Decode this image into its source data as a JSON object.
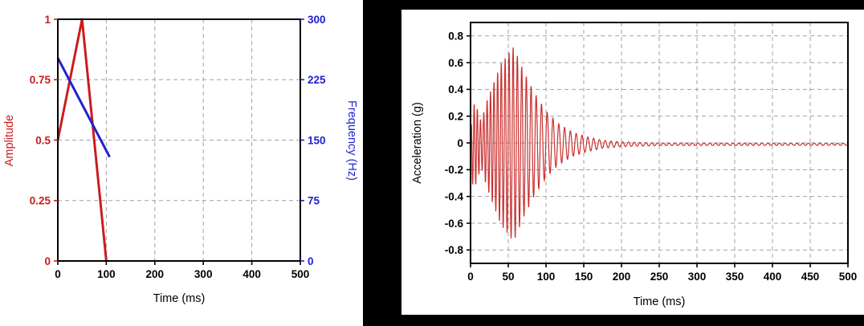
{
  "page": {
    "background": "#000000",
    "panel_background": "#ffffff"
  },
  "chart_data": [
    {
      "id": "amplitude-frequency-chart",
      "type": "line",
      "title": "",
      "xlabel": "Time (ms)",
      "xlim": [
        0,
        500
      ],
      "x_ticks": [
        0,
        100,
        200,
        300,
        400,
        500
      ],
      "x_tick_labels": [
        "0",
        "100",
        "200",
        "300",
        "400",
        "500"
      ],
      "grid": {
        "on": true,
        "style": "dashed",
        "color": "#a0a0a0"
      },
      "axes": {
        "left": {
          "label": "Amplitude",
          "color": "#c81d1d",
          "lim": [
            0,
            1
          ],
          "ticks": [
            0,
            0.25,
            0.5,
            0.75,
            1
          ],
          "tick_labels": [
            "0",
            "0.25",
            "0.5",
            "0.75",
            "1"
          ]
        },
        "right": {
          "label": "Frequency (Hz)",
          "color": "#2121cc",
          "lim": [
            0,
            300
          ],
          "ticks": [
            0,
            75,
            150,
            225,
            300
          ],
          "tick_labels": [
            "0",
            "75",
            "150",
            "225",
            "300"
          ]
        }
      },
      "series": [
        {
          "name": "amplitude-envelope",
          "axis": "left",
          "color": "#c81d1d",
          "x": [
            0,
            50,
            100
          ],
          "y": [
            0.5,
            1,
            0
          ]
        },
        {
          "name": "frequency-sweep",
          "axis": "right",
          "color": "#2121cc",
          "x": [
            0,
            107
          ],
          "y": [
            252,
            129
          ]
        }
      ]
    },
    {
      "id": "acceleration-chart",
      "type": "line",
      "title": "",
      "xlabel": "Time (ms)",
      "ylabel": "Acceleration (g)",
      "xlim": [
        0,
        500
      ],
      "ylim": [
        -0.9,
        0.9
      ],
      "x_ticks": [
        0,
        50,
        100,
        150,
        200,
        250,
        300,
        350,
        400,
        450,
        500
      ],
      "x_tick_labels": [
        "0",
        "50",
        "100",
        "150",
        "200",
        "250",
        "300",
        "350",
        "400",
        "450",
        "500"
      ],
      "y_ticks": [
        -0.8,
        -0.6,
        -0.4,
        -0.2,
        0,
        0.2,
        0.4,
        0.6,
        0.8
      ],
      "y_tick_labels": [
        "-0.8",
        "-0.6",
        "-0.4",
        "-0.2",
        "0",
        "0.2",
        "0.4",
        "0.6",
        "0.8"
      ],
      "grid": {
        "on": true,
        "style": "dashed",
        "color": "#a0a0a0"
      },
      "series_color": "#c9302f",
      "signal": {
        "type": "decaying-chirp",
        "freq_start_hz": 250,
        "freq_end_hz": 130,
        "sweep_ms": 100,
        "envelope_t_ms": [
          0,
          2,
          7,
          14,
          22,
          40,
          57,
          70,
          85,
          100,
          115,
          135,
          155,
          175,
          200,
          250,
          500
        ],
        "envelope_amp": [
          0.02,
          0.3,
          0.3,
          0.17,
          0.33,
          0.6,
          0.73,
          0.55,
          0.38,
          0.25,
          0.16,
          0.09,
          0.055,
          0.03,
          0.018,
          0.01,
          0.008
        ],
        "baseline": -0.01
      }
    }
  ]
}
